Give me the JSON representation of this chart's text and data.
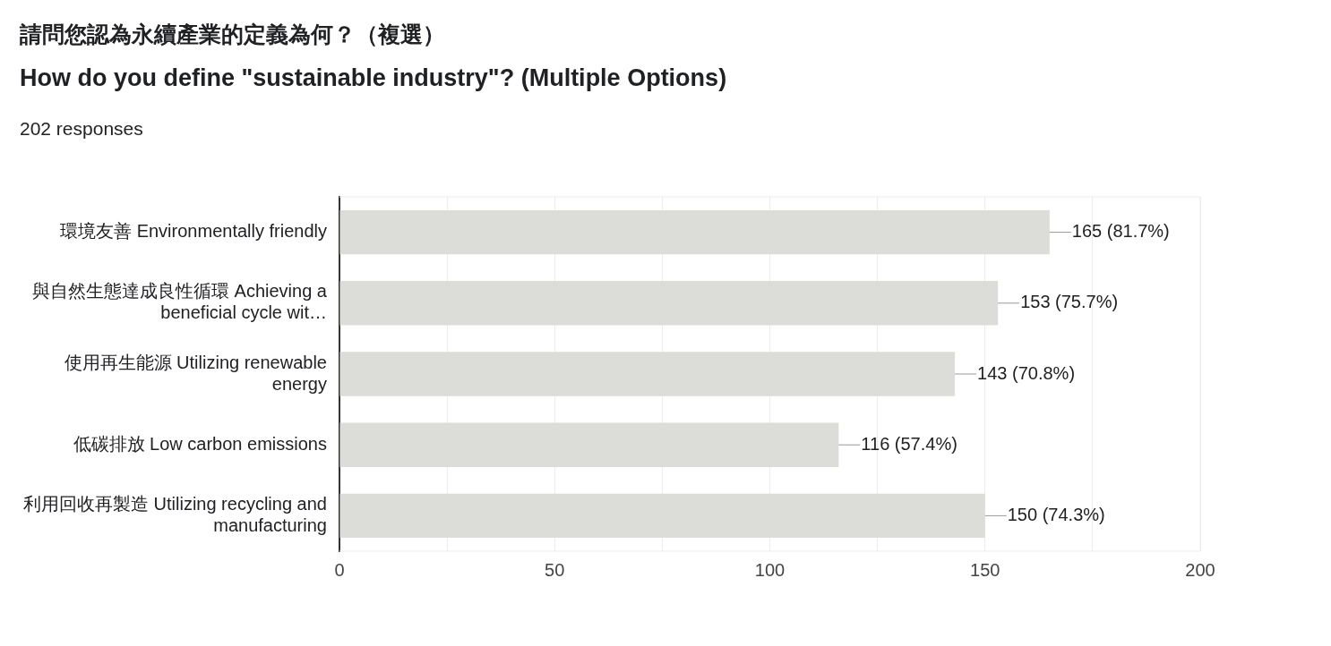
{
  "chart_data": {
    "type": "bar",
    "orientation": "horizontal",
    "title": "請問您認為永續產業的定義為何？（複選）",
    "subtitle": "How do you define \"sustainable industry\"? (Multiple Options)",
    "annotations": [
      "202 responses"
    ],
    "categories": [
      "環境友善 Environmentally friendly",
      "與自然生態達成良性循環 Achieving a beneficial cycle wit…",
      "使用再生能源 Utilizing renewable energy",
      "低碳排放 Low carbon emissions",
      "利用回收再製造 Utilizing recycling and manufacturing"
    ],
    "values": [
      165,
      153,
      143,
      116,
      150
    ],
    "value_labels": [
      "165 (81.7%)",
      "153 (75.7%)",
      "143 (70.8%)",
      "116 (57.4%)",
      "150 (74.3%)"
    ],
    "color": "#dcddd8",
    "xlim": [
      0,
      200
    ],
    "xticks": [
      0,
      {
        "value": 25,
        "label": null
      },
      50,
      {
        "value": 75,
        "label": null
      },
      100,
      {
        "value": 125,
        "label": null
      },
      150,
      {
        "value": 175,
        "label": null
      },
      200
    ],
    "grid": "x",
    "legend": false
  }
}
